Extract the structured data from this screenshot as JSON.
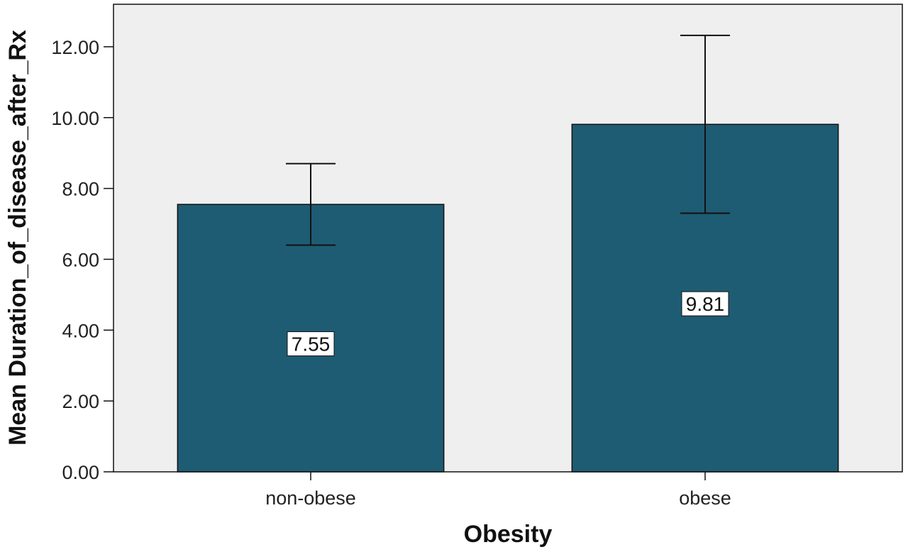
{
  "chart_data": {
    "type": "bar",
    "categories": [
      "non-obese",
      "obese"
    ],
    "values": [
      7.55,
      9.81
    ],
    "value_labels": [
      "7.55",
      "9.81"
    ],
    "error_bars": [
      {
        "low": 6.4,
        "high": 8.7
      },
      {
        "low": 7.3,
        "high": 12.32
      }
    ],
    "title": "",
    "xlabel": "Obesity",
    "ylabel": "Mean Duration_of_disease_after_Rx",
    "ylim": [
      0,
      13.2
    ],
    "yticks": [
      "0.00",
      "2.00",
      "4.00",
      "6.00",
      "8.00",
      "10.00",
      "12.00"
    ],
    "grid": false,
    "legend": "none",
    "colors": {
      "bar_fill": "#1e5c73",
      "bar_stroke": "#111111",
      "plot_background": "#efefef",
      "error_bar": "#111111"
    }
  }
}
